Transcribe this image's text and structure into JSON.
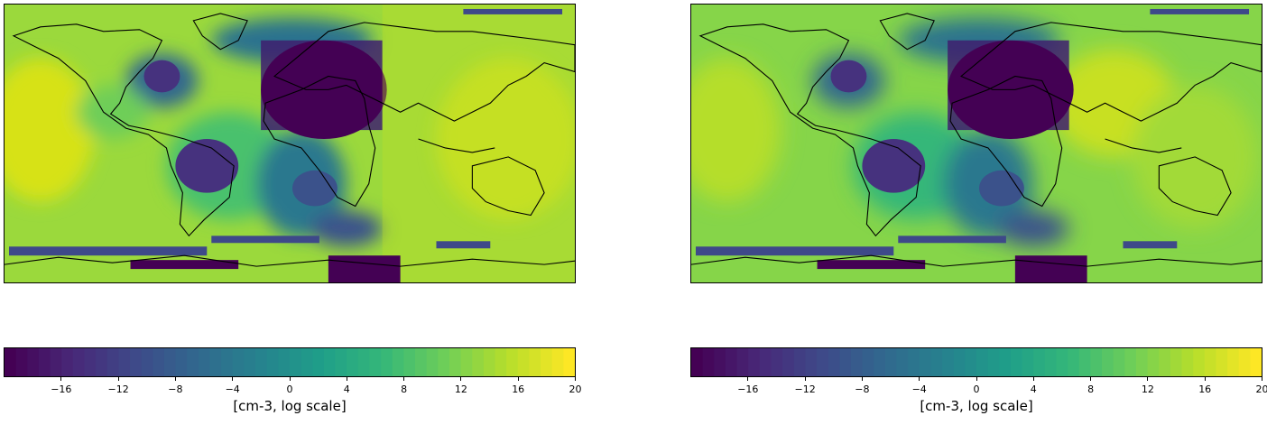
{
  "panels": [
    {
      "name": "left",
      "colorbar": {
        "label": "[cm-3, log scale]",
        "min": -20,
        "max": 20,
        "ticks": [
          "-16",
          "-12",
          "-8",
          "-4",
          "0",
          "4",
          "8",
          "12",
          "16",
          "20"
        ],
        "colormap": "viridis"
      }
    },
    {
      "name": "right",
      "colorbar": {
        "label": "[cm-3, log scale]",
        "min": -20,
        "max": 20,
        "ticks": [
          "-16",
          "-12",
          "-8",
          "-4",
          "0",
          "4",
          "8",
          "12",
          "16",
          "20"
        ],
        "colormap": "viridis"
      }
    }
  ],
  "colors": {
    "viridis": [
      "#440154",
      "#482878",
      "#3e4989",
      "#31688e",
      "#26828e",
      "#1f9e89",
      "#35b779",
      "#6ece58",
      "#b5de2b",
      "#fde725"
    ]
  }
}
